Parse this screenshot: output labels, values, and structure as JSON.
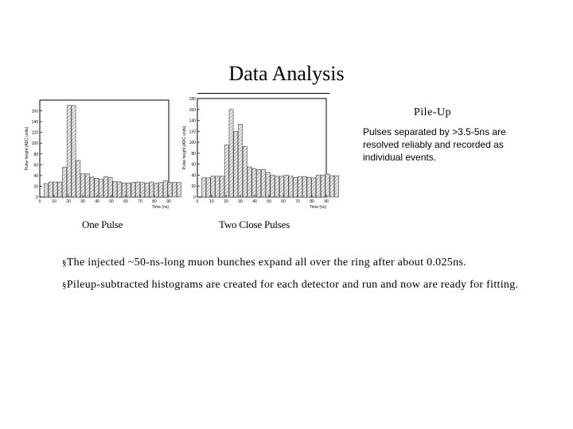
{
  "page": {
    "title": "Data Analysis",
    "panel_title": "Pile-Up",
    "panel_text": "Pulses separated by >3.5-5ns are resolved reliably and recorded as individual events.",
    "bullets": [
      "The injected ~50-ns-long muon bunches expand all over the ring after about 0.025ns.",
      "Pileup-subtracted histograms are created for each detector and run and now are ready for fitting."
    ]
  },
  "chart_data": [
    {
      "type": "bar",
      "caption": "One Pulse",
      "xlabel": "Time (ns)",
      "ylabel": "Pulse height (ADC units)",
      "xlim": [
        0,
        90
      ],
      "ylim": [
        0,
        180
      ],
      "xticks": [
        0,
        10,
        20,
        30,
        40,
        50,
        60,
        70,
        80,
        90
      ],
      "yticks": [
        0,
        20,
        40,
        60,
        80,
        100,
        120,
        140,
        160
      ],
      "bin_width": 3.2,
      "x_start": 3,
      "values": [
        25,
        28,
        28,
        28,
        55,
        170,
        170,
        68,
        43,
        43,
        37,
        35,
        33,
        38,
        36,
        29,
        28,
        26,
        26,
        27,
        28,
        27,
        26,
        28,
        26,
        27,
        30,
        27,
        27,
        27
      ]
    },
    {
      "type": "bar",
      "caption": "Two Close Pulses",
      "xlabel": "Time (ns)",
      "ylabel": "Pulse height (ADC units)",
      "xlim": [
        0,
        90
      ],
      "ylim": [
        0,
        180
      ],
      "xticks": [
        0,
        10,
        20,
        30,
        40,
        50,
        60,
        70,
        80,
        90
      ],
      "yticks": [
        0,
        20,
        40,
        60,
        80,
        100,
        120,
        140,
        160,
        180
      ],
      "bin_width": 3.2,
      "x_start": 3,
      "values": [
        35,
        35,
        38,
        38,
        38,
        95,
        160,
        120,
        133,
        92,
        55,
        52,
        50,
        50,
        45,
        40,
        38,
        38,
        40,
        38,
        36,
        37,
        37,
        36,
        35,
        40,
        40,
        42,
        39,
        39
      ]
    }
  ]
}
